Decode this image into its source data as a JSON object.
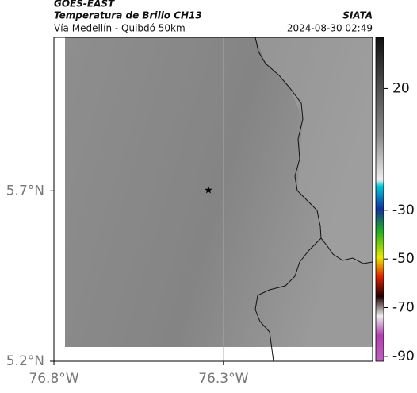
{
  "header": {
    "satellite": "GOES-EAST",
    "product": "Temperatura de Brillo CH13",
    "region": "Vía Medellín - Quibdó 50km",
    "source": "SIATA",
    "timestamp": "2024-08-30 02:49"
  },
  "map": {
    "latlim": [
      5.2,
      6.15
    ],
    "lonlim": [
      -76.8,
      -75.86
    ],
    "lat_ticks": [
      {
        "value": 5.7,
        "label": "5.7°N"
      },
      {
        "value": 5.2,
        "label": "5.2°N"
      }
    ],
    "lon_ticks": [
      {
        "value": -76.8,
        "label": "76.8°W"
      },
      {
        "value": -76.3,
        "label": "76.3°W"
      }
    ]
  },
  "colorbar": {
    "lim": [
      -92,
      41
    ],
    "ticks": [
      20,
      -30,
      -50,
      -70,
      -90
    ]
  }
}
